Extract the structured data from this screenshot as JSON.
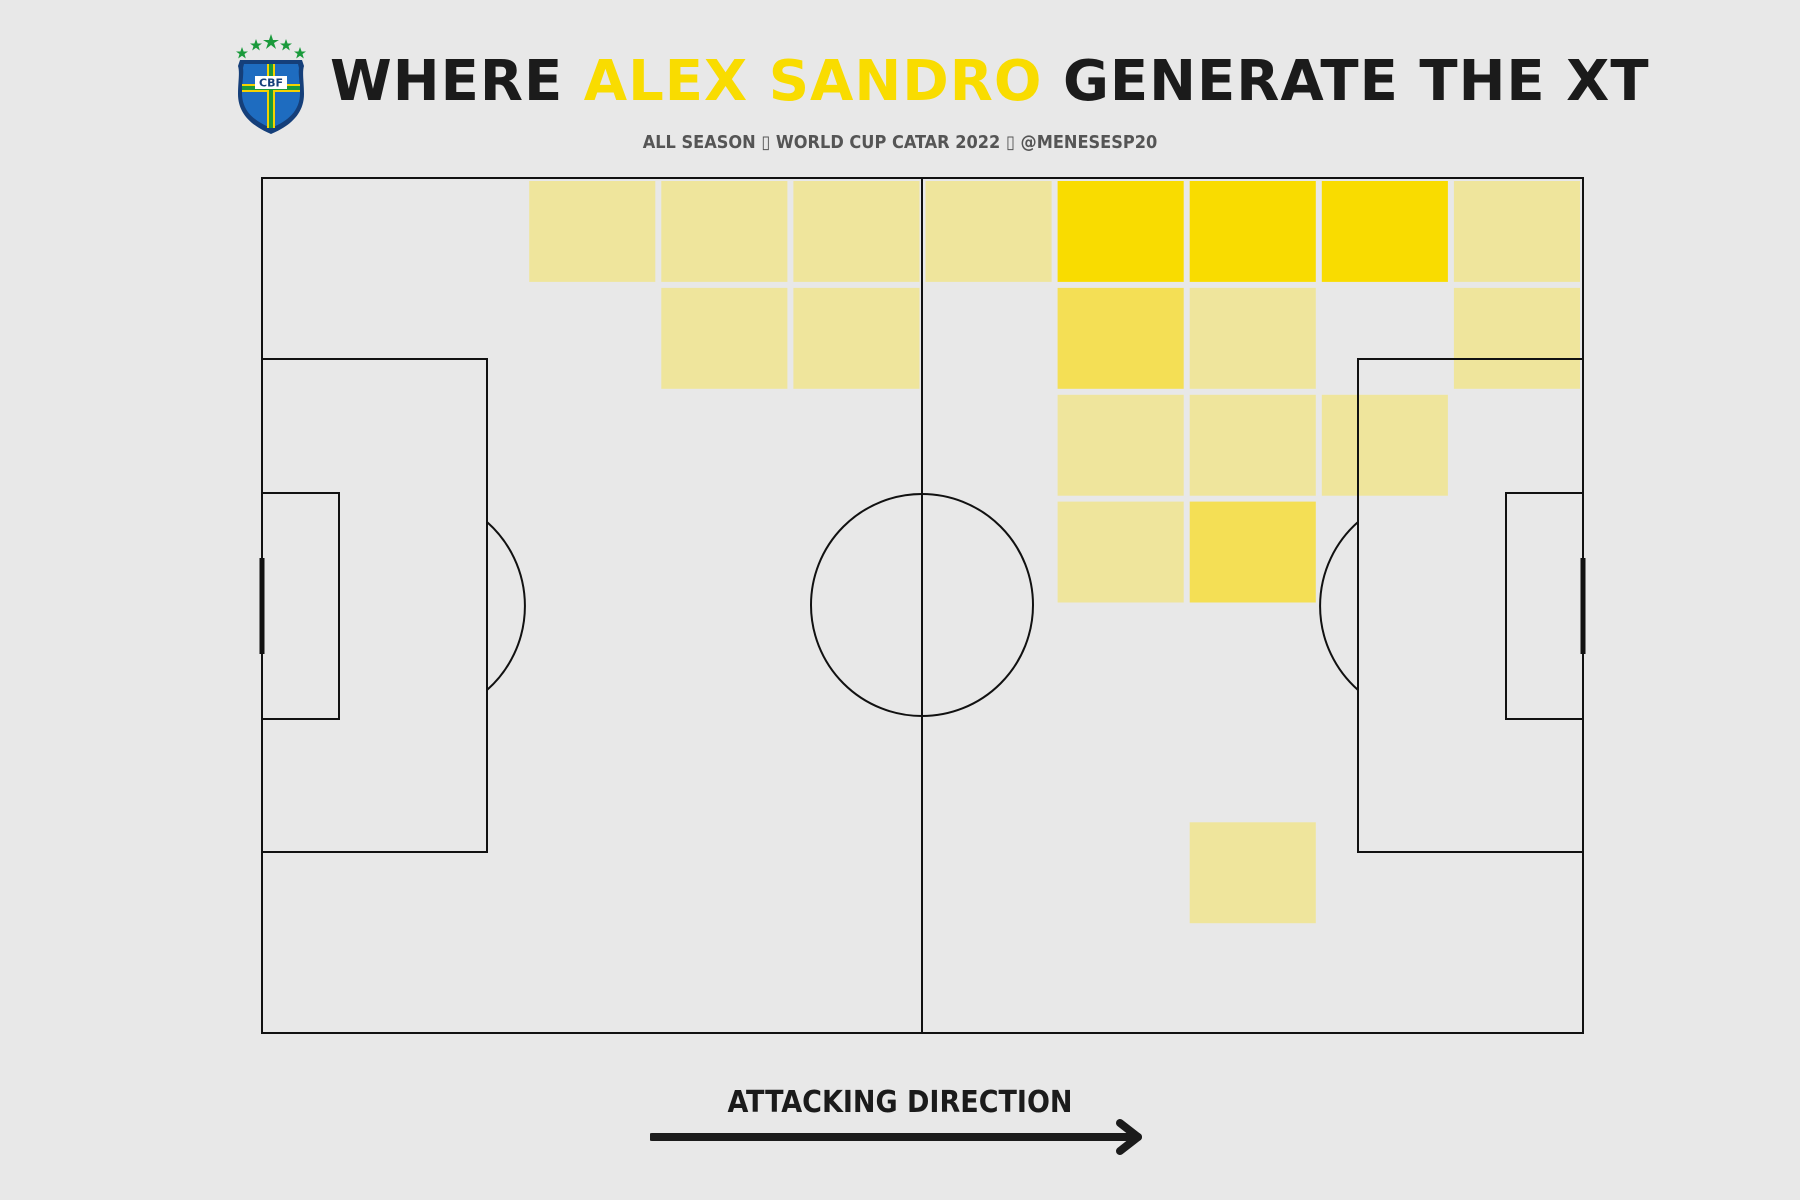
{
  "header": {
    "title_prefix": "WHERE ",
    "title_highlight": "ALEX SANDRO",
    "title_suffix": " GENERATE THE XT",
    "subtitle": "ALL SEASON ▯ WORLD CUP CATAR 2022 ▯ @MENESESP20"
  },
  "logo": {
    "text": "CBF",
    "icon": "cbf-crest-icon",
    "colors": {
      "shield": "#1e5aa8",
      "cross": "#f5d200",
      "stars": "#1a9a3b"
    }
  },
  "footer": {
    "direction_label": "ATTACKING DIRECTION",
    "arrow_icon": "arrow-right-icon"
  },
  "colors": {
    "background": "#e8e8e8",
    "lines": "#111111",
    "highlight": "#f9dc00",
    "scale_low": "#efe59c",
    "scale_mid": "#f4df55",
    "scale_high": "#f9dc00"
  },
  "chart_data": {
    "type": "heatmap",
    "title": "WHERE ALEX SANDRO GENERATE THE XT",
    "subtitle": "ALL SEASON ▯ WORLD CUP CATAR 2022 ▯ @MENESESP20",
    "grid": {
      "columns": 10,
      "rows": 8
    },
    "value_scale": "relative xT intensity (0–1)",
    "cells": [
      {
        "col": 2,
        "row": 0,
        "value": 0.25
      },
      {
        "col": 3,
        "row": 0,
        "value": 0.25
      },
      {
        "col": 4,
        "row": 0,
        "value": 0.25
      },
      {
        "col": 5,
        "row": 0,
        "value": 0.25
      },
      {
        "col": 6,
        "row": 0,
        "value": 1.0
      },
      {
        "col": 7,
        "row": 0,
        "value": 1.0
      },
      {
        "col": 8,
        "row": 0,
        "value": 1.0
      },
      {
        "col": 9,
        "row": 0,
        "value": 0.25
      },
      {
        "col": 3,
        "row": 1,
        "value": 0.25
      },
      {
        "col": 4,
        "row": 1,
        "value": 0.25
      },
      {
        "col": 6,
        "row": 1,
        "value": 0.6
      },
      {
        "col": 7,
        "row": 1,
        "value": 0.25
      },
      {
        "col": 9,
        "row": 1,
        "value": 0.25
      },
      {
        "col": 6,
        "row": 2,
        "value": 0.25
      },
      {
        "col": 7,
        "row": 2,
        "value": 0.25
      },
      {
        "col": 8,
        "row": 2,
        "value": 0.25
      },
      {
        "col": 6,
        "row": 3,
        "value": 0.25
      },
      {
        "col": 7,
        "row": 3,
        "value": 0.6
      },
      {
        "col": 7,
        "row": 6,
        "value": 0.25
      }
    ]
  }
}
